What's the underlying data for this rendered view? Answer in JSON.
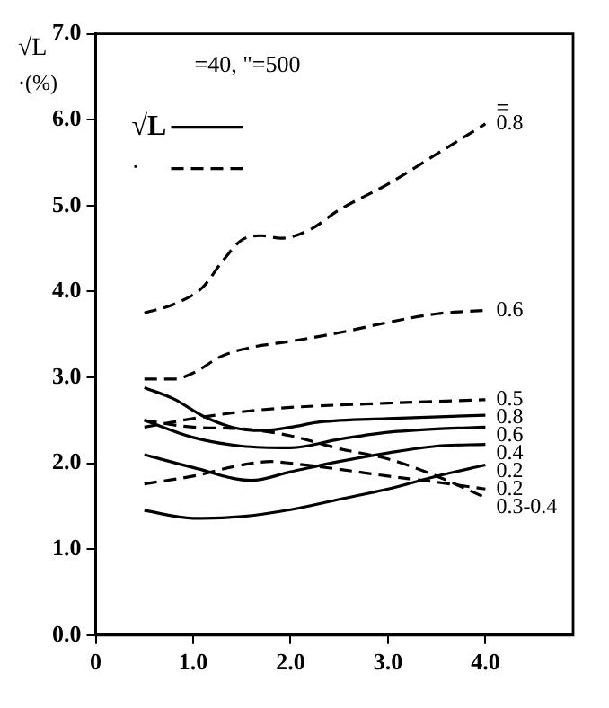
{
  "chart_data": {
    "type": "line",
    "ylabel": "√L ·(%)",
    "annotations": [
      "=40, \"=500",
      "=",
      "√L",
      "·"
    ],
    "xlim": [
      0,
      4.9
    ],
    "xticks": [
      {
        "value": 0,
        "label": "0"
      },
      {
        "value": 1,
        "label": "1.0"
      },
      {
        "value": 2,
        "label": "2.0"
      },
      {
        "value": 3,
        "label": "3.0"
      },
      {
        "value": 4,
        "label": "4.0"
      }
    ],
    "ylim": [
      0,
      7
    ],
    "yticks": [
      {
        "value": 0,
        "label": "0.0"
      },
      {
        "value": 1,
        "label": "1.0"
      },
      {
        "value": 2,
        "label": "2.0"
      },
      {
        "value": 3,
        "label": "3.0"
      },
      {
        "value": 4,
        "label": "4.0"
      },
      {
        "value": 5,
        "label": "5.0"
      },
      {
        "value": 6,
        "label": "6.0"
      },
      {
        "value": 7,
        "label": "7.0"
      }
    ],
    "grid": false,
    "legend": false,
    "marker": "none",
    "series": [
      {
        "name": "0.8",
        "color": "#000000",
        "line_style": "dashed",
        "x": [
          0.5,
          0.8,
          1.1,
          1.3,
          1.5,
          1.7,
          1.9,
          2.2,
          2.5,
          3.0,
          3.5,
          4.0
        ],
        "values": [
          3.75,
          3.85,
          4.05,
          4.35,
          4.6,
          4.65,
          4.62,
          4.72,
          4.95,
          5.25,
          5.6,
          5.95
        ]
      },
      {
        "name": "0.6",
        "color": "#000000",
        "line_style": "dashed",
        "x": [
          0.5,
          0.8,
          1.0,
          1.3,
          1.6,
          2.0,
          2.5,
          3.0,
          3.5,
          4.0
        ],
        "values": [
          2.98,
          2.98,
          3.05,
          3.25,
          3.35,
          3.42,
          3.52,
          3.64,
          3.74,
          3.78
        ]
      },
      {
        "name": "0.5",
        "color": "#000000",
        "line_style": "dashed",
        "x": [
          0.5,
          1.0,
          1.5,
          2.0,
          3.0,
          4.0
        ],
        "values": [
          2.42,
          2.52,
          2.6,
          2.65,
          2.7,
          2.74
        ]
      },
      {
        "name": "0.8",
        "color": "#000000",
        "line_style": "solid",
        "x": [
          0.5,
          0.8,
          1.1,
          1.4,
          1.7,
          2.0,
          2.3,
          3.0,
          4.0
        ],
        "values": [
          2.88,
          2.75,
          2.55,
          2.42,
          2.38,
          2.42,
          2.48,
          2.52,
          2.56
        ]
      },
      {
        "name": "0.6",
        "color": "#000000",
        "line_style": "solid",
        "x": [
          0.5,
          1.0,
          1.5,
          2.0,
          2.5,
          3.0,
          3.5,
          4.0
        ],
        "values": [
          2.5,
          2.3,
          2.2,
          2.18,
          2.28,
          2.36,
          2.4,
          2.42
        ]
      },
      {
        "name": "0.4",
        "color": "#000000",
        "line_style": "solid",
        "x": [
          0.5,
          1.0,
          1.6,
          2.0,
          2.5,
          3.0,
          3.5,
          4.0
        ],
        "values": [
          2.1,
          1.95,
          1.8,
          1.9,
          2.02,
          2.12,
          2.2,
          2.22
        ]
      },
      {
        "name": "0.2",
        "color": "#000000",
        "line_style": "solid",
        "x": [
          0.5,
          1.0,
          1.5,
          2.0,
          2.5,
          3.0,
          3.5,
          4.0
        ],
        "values": [
          1.45,
          1.36,
          1.38,
          1.46,
          1.58,
          1.7,
          1.85,
          1.98
        ]
      },
      {
        "name": "0.2",
        "color": "#000000",
        "line_style": "dashed",
        "x": [
          0.5,
          1.0,
          1.5,
          1.8,
          2.0,
          2.5,
          3.0,
          3.5,
          4.0
        ],
        "values": [
          1.76,
          1.85,
          1.98,
          2.02,
          2.0,
          1.93,
          1.85,
          1.78,
          1.7
        ]
      },
      {
        "name": "0.3-0.4",
        "color": "#000000",
        "line_style": "dashed",
        "x": [
          0.5,
          1.0,
          1.5,
          2.0,
          2.5,
          3.0,
          3.5,
          4.0
        ],
        "values": [
          2.5,
          2.42,
          2.4,
          2.32,
          2.17,
          2.05,
          1.85,
          1.6
        ]
      }
    ]
  }
}
